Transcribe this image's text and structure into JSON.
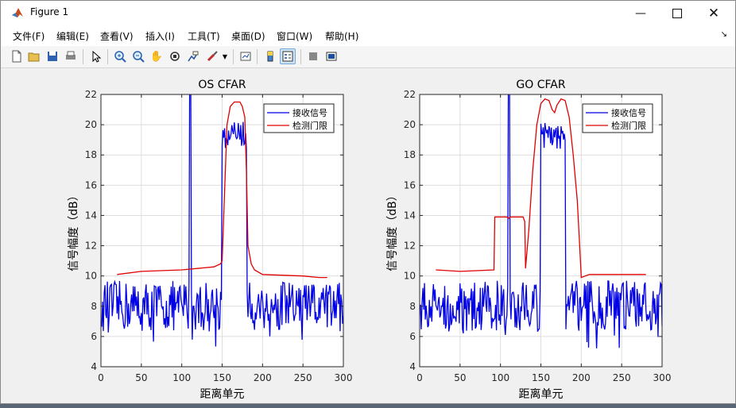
{
  "window": {
    "title": "Figure 1"
  },
  "menu": [
    "文件(F)",
    "编辑(E)",
    "查看(V)",
    "插入(I)",
    "工具(T)",
    "桌面(D)",
    "窗口(W)",
    "帮助(H)"
  ],
  "toolbar_icons": [
    "new-figure-icon",
    "open-file-icon",
    "save-icon",
    "print-icon",
    "select-arrow-icon",
    "zoom-in-icon",
    "zoom-out-icon",
    "pan-hand-icon",
    "rotate-3d-icon",
    "data-cursor-icon",
    "brush-icon",
    "link-plot-icon",
    "colorbar-icon",
    "legend-icon",
    "hide-plot-tools-icon",
    "show-plot-tools-icon"
  ],
  "colors": {
    "signal": "#0000e6",
    "threshold": "#e00000"
  },
  "chart_data": [
    {
      "type": "line",
      "title": "OS CFAR",
      "xlabel": "距离单元",
      "ylabel": "信号幅度（dB）",
      "xlim": [
        0,
        300
      ],
      "ylim": [
        4,
        22
      ],
      "xticks": [
        0,
        50,
        100,
        150,
        200,
        250,
        300
      ],
      "yticks": [
        4,
        6,
        8,
        10,
        12,
        14,
        16,
        18,
        20,
        22
      ],
      "grid": true,
      "legend": "top-right",
      "series": [
        {
          "name": "接收信号",
          "color": "#0000e6",
          "noise_floor": 8,
          "noise_spread": 1.2,
          "x_range": [
            1,
            300
          ],
          "targets": [
            {
              "x_start": 110,
              "x_end": 111,
              "peak": 26
            },
            {
              "x_start": 150,
              "x_end": 180,
              "level": 19.3
            }
          ]
        },
        {
          "name": "检测门限",
          "color": "#e00000",
          "points": [
            [
              20,
              10.1
            ],
            [
              50,
              10.3
            ],
            [
              100,
              10.4
            ],
            [
              140,
              10.6
            ],
            [
              148,
              10.8
            ],
            [
              150,
              11
            ],
            [
              152,
              14
            ],
            [
              156,
              20
            ],
            [
              160,
              21.2
            ],
            [
              165,
              21.5
            ],
            [
              172,
              21.5
            ],
            [
              175,
              21.2
            ],
            [
              178,
              20.5
            ],
            [
              180,
              17
            ],
            [
              182,
              12
            ],
            [
              186,
              10.8
            ],
            [
              190,
              10.4
            ],
            [
              200,
              10.1
            ],
            [
              250,
              10.0
            ],
            [
              270,
              9.9
            ],
            [
              280,
              9.9
            ]
          ]
        }
      ]
    },
    {
      "type": "line",
      "title": "GO CFAR",
      "xlabel": "距离单元",
      "ylabel": "信号幅度（dB）",
      "xlim": [
        0,
        300
      ],
      "ylim": [
        4,
        22
      ],
      "xticks": [
        0,
        50,
        100,
        150,
        200,
        250,
        300
      ],
      "yticks": [
        4,
        6,
        8,
        10,
        12,
        14,
        16,
        18,
        20,
        22
      ],
      "grid": true,
      "legend": "top-right",
      "series": [
        {
          "name": "接收信号",
          "color": "#0000e6",
          "noise_floor": 8,
          "noise_spread": 1.2,
          "x_range": [
            1,
            300
          ],
          "targets": [
            {
              "x_start": 110,
              "x_end": 111,
              "peak": 26
            },
            {
              "x_start": 150,
              "x_end": 180,
              "level": 19.3
            }
          ]
        },
        {
          "name": "检测门限",
          "color": "#e00000",
          "points": [
            [
              20,
              10.4
            ],
            [
              50,
              10.3
            ],
            [
              92,
              10.4
            ],
            [
              93,
              13.9
            ],
            [
              108,
              13.9
            ],
            [
              110,
              13.8
            ],
            [
              112,
              13.9
            ],
            [
              128,
              13.9
            ],
            [
              130,
              13.6
            ],
            [
              131,
              10.5
            ],
            [
              135,
              13
            ],
            [
              140,
              17
            ],
            [
              145,
              20
            ],
            [
              150,
              21.4
            ],
            [
              155,
              21.7
            ],
            [
              160,
              21.6
            ],
            [
              164,
              21
            ],
            [
              167,
              20.8
            ],
            [
              170,
              21.3
            ],
            [
              175,
              21.7
            ],
            [
              180,
              21.6
            ],
            [
              185,
              20.5
            ],
            [
              190,
              18
            ],
            [
              195,
              15
            ],
            [
              199,
              11
            ],
            [
              200,
              9.9
            ],
            [
              210,
              10.1
            ],
            [
              250,
              10.1
            ],
            [
              280,
              10.1
            ]
          ]
        }
      ]
    }
  ]
}
